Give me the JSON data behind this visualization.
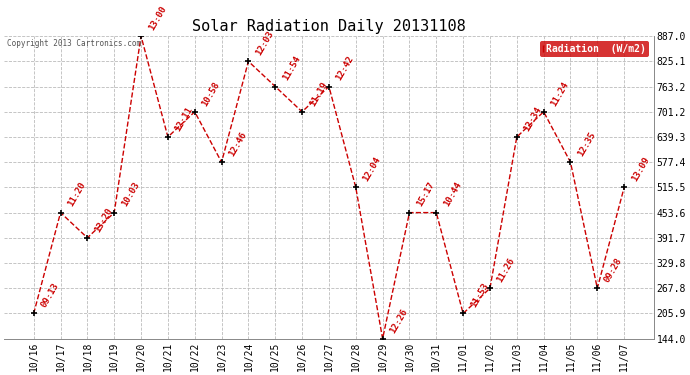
{
  "title": "Solar Radiation Daily 20131108",
  "copyright": "Copyright 2013 Cartronics.com",
  "legend_label": "Radiation  (W/m2)",
  "dates": [
    "10/16",
    "10/17",
    "10/18",
    "10/19",
    "10/20",
    "10/21",
    "10/22",
    "10/23",
    "10/24",
    "10/25",
    "10/26",
    "10/27",
    "10/28",
    "10/29",
    "10/30",
    "10/31",
    "11/01",
    "11/02",
    "11/03",
    "11/04",
    "11/05",
    "11/06",
    "11/07"
  ],
  "values": [
    205.9,
    453.6,
    391.7,
    453.6,
    887.0,
    639.3,
    701.2,
    577.4,
    825.1,
    763.2,
    701.2,
    763.2,
    515.5,
    144.0,
    453.6,
    453.6,
    205.9,
    267.8,
    639.3,
    701.2,
    577.4,
    267.8,
    515.5
  ],
  "labels": [
    "09:13",
    "11:20",
    "13:20",
    "10:03",
    "13:00",
    "12:11",
    "10:58",
    "12:46",
    "12:03",
    "11:54",
    "11:19",
    "12:42",
    "12:04",
    "12:26",
    "15:17",
    "10:44",
    "11:53",
    "11:26",
    "12:34",
    "11:24",
    "12:35",
    "09:28",
    "13:09"
  ],
  "y_ticks": [
    144.0,
    205.9,
    267.8,
    329.8,
    391.7,
    453.6,
    515.5,
    577.4,
    639.3,
    701.2,
    763.2,
    825.1,
    887.0
  ],
  "ylim": [
    144.0,
    887.0
  ],
  "line_color": "#cc0000",
  "marker_color": "#000000",
  "bg_color": "#ffffff",
  "grid_color": "#bbbbbb",
  "title_fontsize": 11,
  "label_fontsize": 6.5,
  "tick_fontsize": 7,
  "legend_bg": "#cc0000",
  "legend_fg": "#ffffff"
}
